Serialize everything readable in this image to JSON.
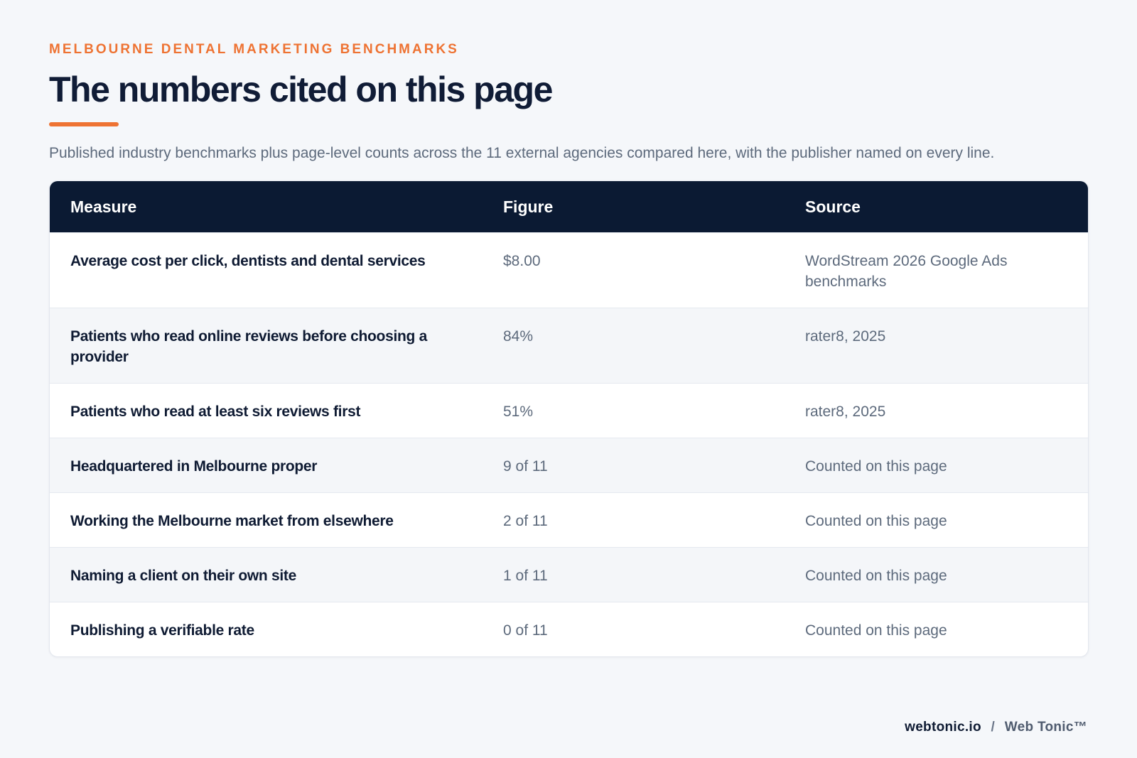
{
  "header": {
    "eyebrow": "MELBOURNE DENTAL MARKETING BENCHMARKS",
    "title": "The numbers cited on this page",
    "intro": "Published industry benchmarks plus page-level counts across the 11 external agencies compared here, with the publisher named on every line."
  },
  "table": {
    "columns": [
      "Measure",
      "Figure",
      "Source"
    ],
    "rows": [
      {
        "measure": "Average cost per click, dentists and dental services",
        "figure": "$8.00",
        "source": "WordStream 2026 Google Ads benchmarks"
      },
      {
        "measure": "Patients who read online reviews before choosing a provider",
        "figure": "84%",
        "source": "rater8, 2025"
      },
      {
        "measure": "Patients who read at least six reviews first",
        "figure": "51%",
        "source": "rater8, 2025"
      },
      {
        "measure": "Headquartered in Melbourne proper",
        "figure": "9 of 11",
        "source": "Counted on this page"
      },
      {
        "measure": "Working the Melbourne market from elsewhere",
        "figure": "2 of 11",
        "source": "Counted on this page"
      },
      {
        "measure": "Naming a client on their own site",
        "figure": "1 of 11",
        "source": "Counted on this page"
      },
      {
        "measure": "Publishing a verifiable rate",
        "figure": "0 of 11",
        "source": "Counted on this page"
      }
    ]
  },
  "footer": {
    "domain": "webtonic.io",
    "separator": "/",
    "brand": "Web Tonic™"
  },
  "colors": {
    "accent": "#ee7333",
    "header_bg": "#0b1a33",
    "page_bg": "#f5f7fa"
  }
}
